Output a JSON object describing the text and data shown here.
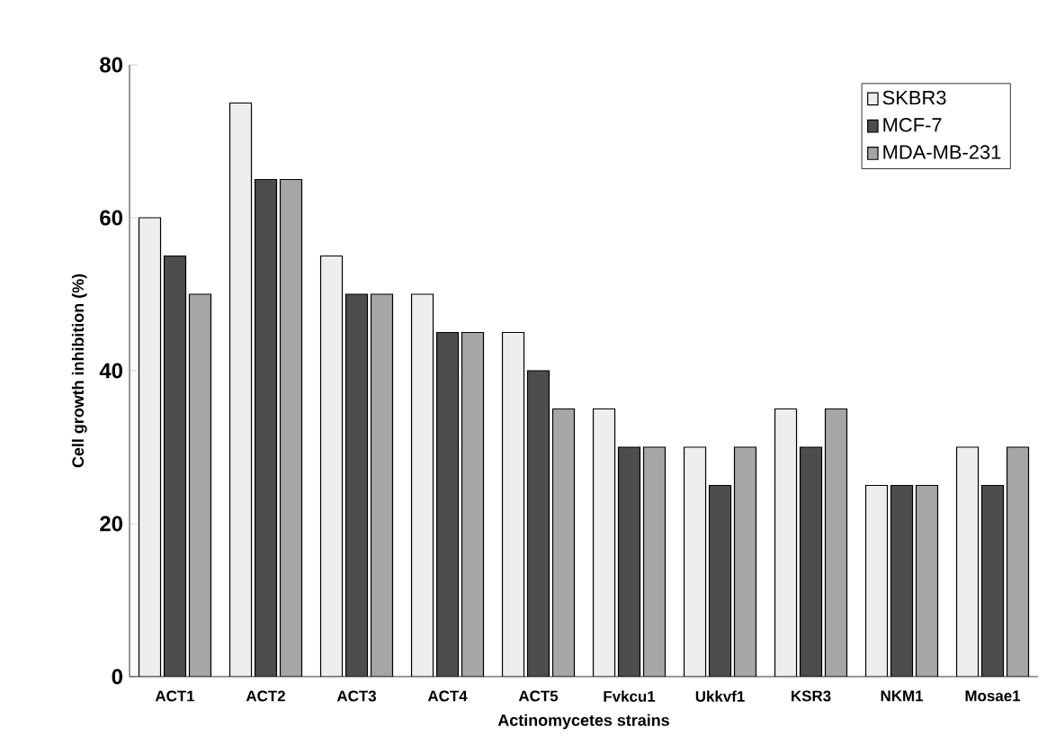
{
  "chart_data": {
    "type": "bar",
    "xlabel": "Actinomycetes strains",
    "ylabel": "Cell growth inhibition (%)",
    "categories": [
      "ACT1",
      "ACT2",
      "ACT3",
      "ACT4",
      "ACT5",
      "Fvkcu1",
      "Ukkvf1",
      "KSR3",
      "NKM1",
      "Mosae1"
    ],
    "series": [
      {
        "name": "SKBR3",
        "color": "#eeeeee",
        "values": [
          60,
          75,
          55,
          50,
          45,
          35,
          30,
          35,
          25,
          30
        ]
      },
      {
        "name": "MCF-7",
        "color": "#4d4d4d",
        "values": [
          55,
          65,
          50,
          45,
          40,
          30,
          25,
          30,
          25,
          25
        ]
      },
      {
        "name": "MDA-MB-231",
        "color": "#a6a6a6",
        "values": [
          50,
          65,
          50,
          45,
          35,
          30,
          30,
          35,
          25,
          30
        ]
      }
    ],
    "ylim": [
      0,
      80
    ],
    "yticks": [
      0,
      20,
      40,
      60,
      80
    ],
    "grid": false,
    "legend": "top right"
  }
}
